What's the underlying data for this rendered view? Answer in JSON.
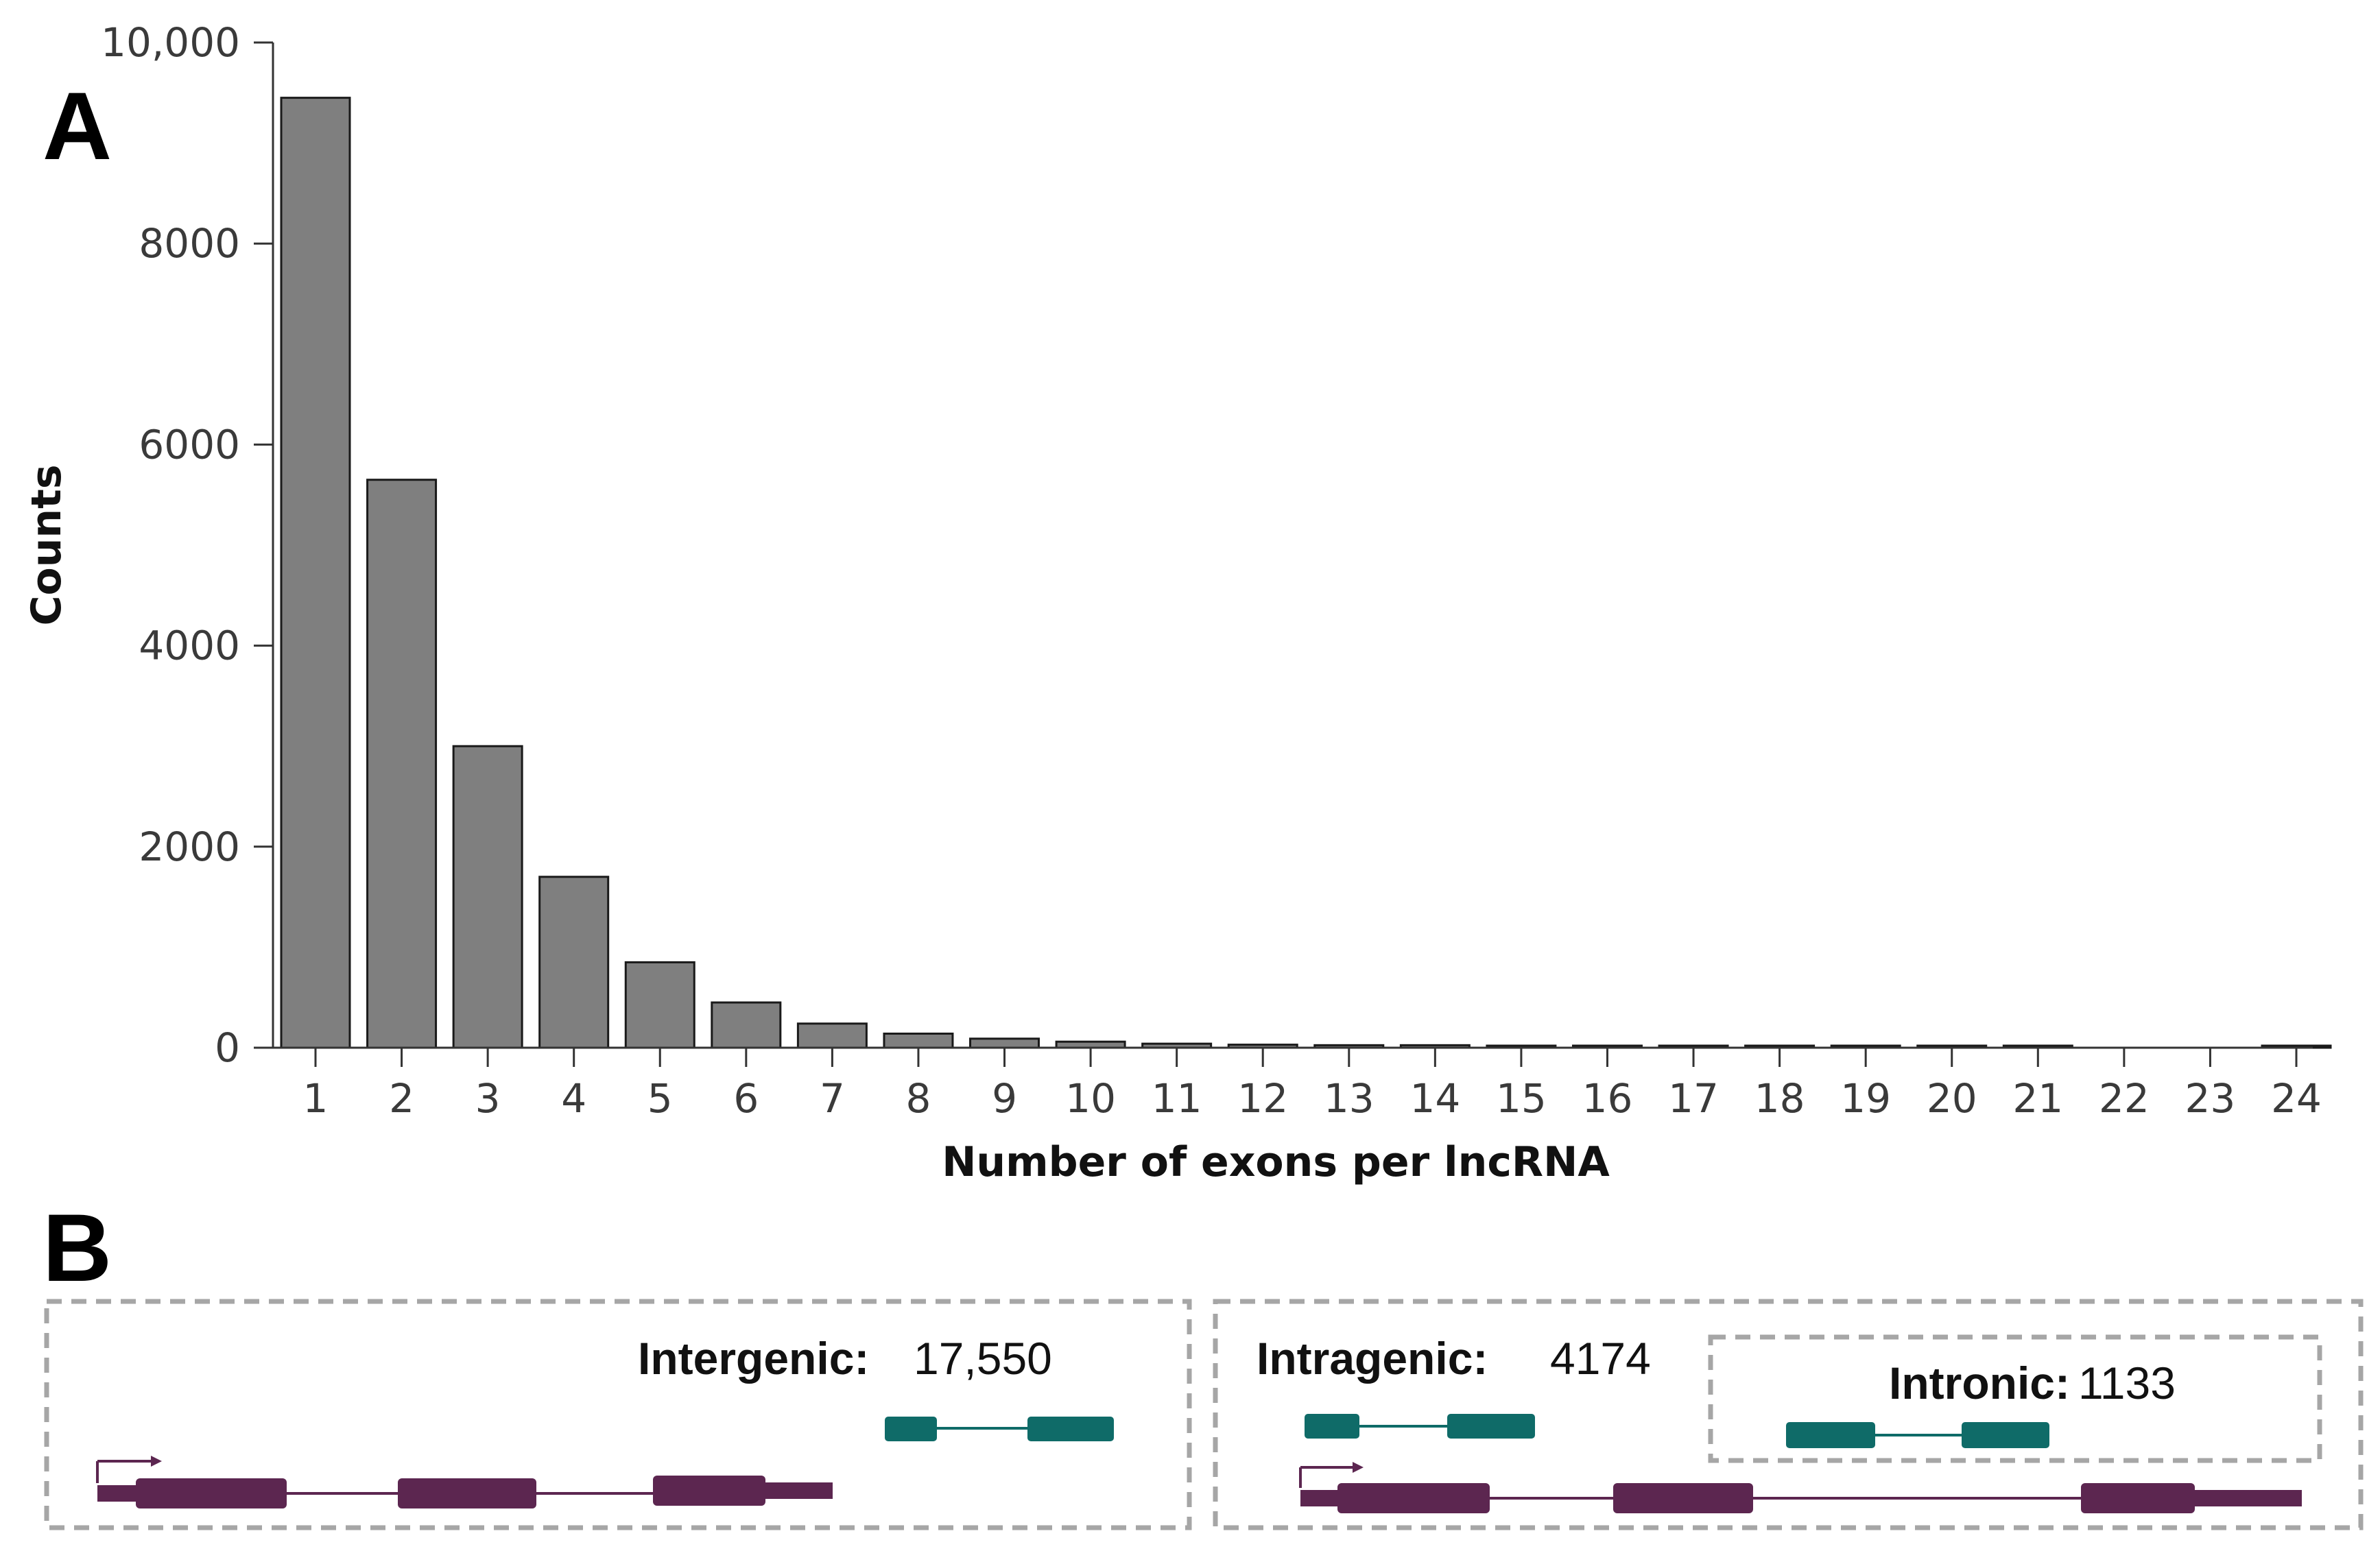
{
  "panel_a_letter": "A",
  "panel_b_letter": "B",
  "colors": {
    "bar": "#7f7f7f",
    "bar_stroke": "#1a1a1a",
    "lncrna": "#0f6b68",
    "gene": "#5c2650",
    "box_border": "#a6a6a6"
  },
  "chart_data": {
    "type": "bar",
    "title": "",
    "xlabel": "Number of exons per lncRNA",
    "ylabel": "Counts",
    "ylim": [
      0,
      10000
    ],
    "yticks": [
      0,
      2000,
      4000,
      6000,
      8000,
      10000
    ],
    "ytick_labels": [
      "0",
      "2000",
      "4000",
      "6000",
      "8000",
      "10,000"
    ],
    "categories": [
      "1",
      "2",
      "3",
      "4",
      "5",
      "6",
      "7",
      "8",
      "9",
      "10",
      "11",
      "12",
      "13",
      "14",
      "15",
      "16",
      "17",
      "18",
      "19",
      "20",
      "21",
      "22",
      "23",
      "24"
    ],
    "values": [
      9450,
      5650,
      3000,
      1700,
      850,
      450,
      240,
      140,
      90,
      60,
      40,
      30,
      25,
      25,
      10,
      10,
      8,
      6,
      5,
      5,
      5,
      0,
      0,
      5
    ]
  },
  "panel_b": {
    "intergenic": {
      "label": "Intergenic:",
      "count": "17,550"
    },
    "intragenic": {
      "label": "Intragenic:",
      "count": "4174"
    },
    "intronic": {
      "label": "Intronic:",
      "count": "1133"
    }
  }
}
